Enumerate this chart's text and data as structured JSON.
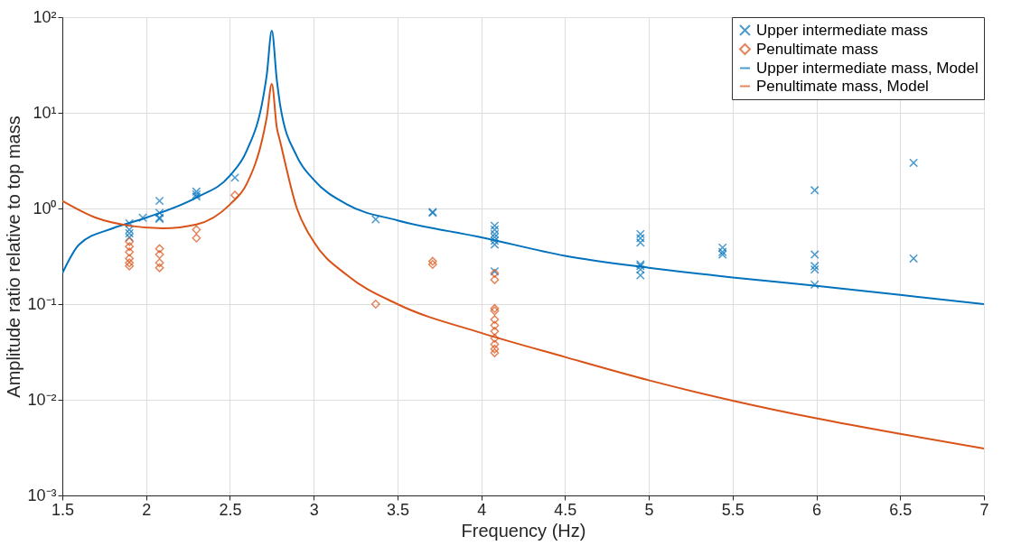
{
  "chart_data": {
    "type": "scatter",
    "xlabel": "Frequency (Hz)",
    "ylabel": "Amplitude ratio relative to top mass",
    "log": "y",
    "grid": true,
    "legend": "top right",
    "xlim": [
      1.5,
      7
    ],
    "xticks": [
      1.5,
      2,
      2.5,
      3,
      3.5,
      4,
      4.5,
      5,
      5.5,
      6,
      6.5,
      7
    ],
    "ylim": [
      0.001,
      100
    ],
    "yticks": [
      {
        "value": 0.001,
        "label": "10⁻³"
      },
      {
        "value": 0.01,
        "label": "10⁻²"
      },
      {
        "value": 0.1,
        "label": "10⁻¹"
      },
      {
        "value": 1,
        "label": "10⁰"
      },
      {
        "value": 10,
        "label": "10¹"
      },
      {
        "value": 100,
        "label": "10²"
      }
    ],
    "series": [
      {
        "name": "Upper intermediate mass",
        "marker": "cross",
        "color": "#0072bd",
        "x": [
          1.9,
          1.9,
          1.9,
          1.9,
          1.98,
          2.08,
          2.08,
          2.08,
          2.08,
          2.3,
          2.3,
          2.3,
          2.53,
          3.37,
          3.71,
          3.71,
          4.08,
          4.08,
          4.08,
          4.08,
          4.08,
          4.08,
          4.08,
          4.95,
          4.95,
          4.95,
          4.95,
          4.95,
          4.95,
          4.95,
          5.44,
          5.44,
          5.44,
          5.99,
          5.99,
          5.99,
          5.99,
          5.99,
          6.58,
          6.58
        ],
        "values": [
          0.7,
          0.6,
          0.55,
          0.5,
          0.8,
          1.2,
          0.9,
          0.8,
          0.78,
          1.5,
          1.4,
          1.33,
          2.1,
          0.77,
          0.92,
          0.9,
          0.66,
          0.6,
          0.54,
          0.5,
          0.46,
          0.42,
          0.22,
          0.54,
          0.49,
          0.44,
          0.26,
          0.25,
          0.23,
          0.2,
          0.39,
          0.35,
          0.33,
          1.55,
          0.33,
          0.25,
          0.23,
          0.16,
          3.0,
          0.3
        ]
      },
      {
        "name": "Penultimate mass",
        "marker": "diamond",
        "color": "#d95319",
        "x": [
          1.9,
          1.9,
          1.9,
          1.9,
          1.9,
          1.9,
          2.08,
          2.08,
          2.08,
          2.08,
          2.3,
          2.3,
          2.53,
          3.37,
          3.71,
          3.71,
          4.08,
          4.08,
          4.08,
          4.08,
          4.08,
          4.08,
          4.08,
          4.08,
          4.08,
          4.08,
          4.08
        ],
        "values": [
          0.45,
          0.4,
          0.35,
          0.3,
          0.27,
          0.25,
          0.38,
          0.33,
          0.27,
          0.24,
          0.6,
          0.49,
          1.38,
          0.1,
          0.28,
          0.26,
          0.21,
          0.18,
          0.09,
          0.085,
          0.069,
          0.06,
          0.052,
          0.044,
          0.038,
          0.034,
          0.031
        ]
      },
      {
        "name": "Upper intermediate mass, Model",
        "type": "line",
        "marker": "none",
        "color": "#0072bd",
        "x": [
          1.5,
          1.6,
          1.8,
          2.0,
          2.3,
          2.5,
          2.6,
          2.7,
          2.72,
          2.75,
          2.78,
          2.8,
          2.9,
          3.0,
          3.2,
          3.5,
          4.0,
          4.5,
          5.0,
          5.5,
          6.0,
          6.5,
          7.0
        ],
        "values": [
          0.21,
          0.42,
          0.62,
          0.8,
          1.3,
          2.2,
          4,
          15,
          25,
          72,
          22,
          12,
          3.5,
          2.0,
          1.1,
          0.75,
          0.5,
          0.32,
          0.24,
          0.19,
          0.155,
          0.125,
          0.1
        ]
      },
      {
        "name": "Penultimate mass, Model",
        "type": "line",
        "marker": "none",
        "color": "#d95319",
        "x": [
          1.5,
          1.7,
          1.9,
          2.1,
          2.3,
          2.5,
          2.6,
          2.7,
          2.72,
          2.75,
          2.78,
          2.8,
          2.9,
          3.0,
          3.2,
          3.5,
          4.0,
          4.5,
          5.0,
          5.5,
          6.0,
          6.5,
          7.0
        ],
        "values": [
          1.2,
          0.8,
          0.66,
          0.62,
          0.68,
          1.1,
          1.8,
          6,
          9,
          20,
          7,
          5,
          1.0,
          0.45,
          0.2,
          0.1,
          0.05,
          0.028,
          0.016,
          0.0098,
          0.0064,
          0.0044,
          0.0031
        ]
      }
    ]
  }
}
